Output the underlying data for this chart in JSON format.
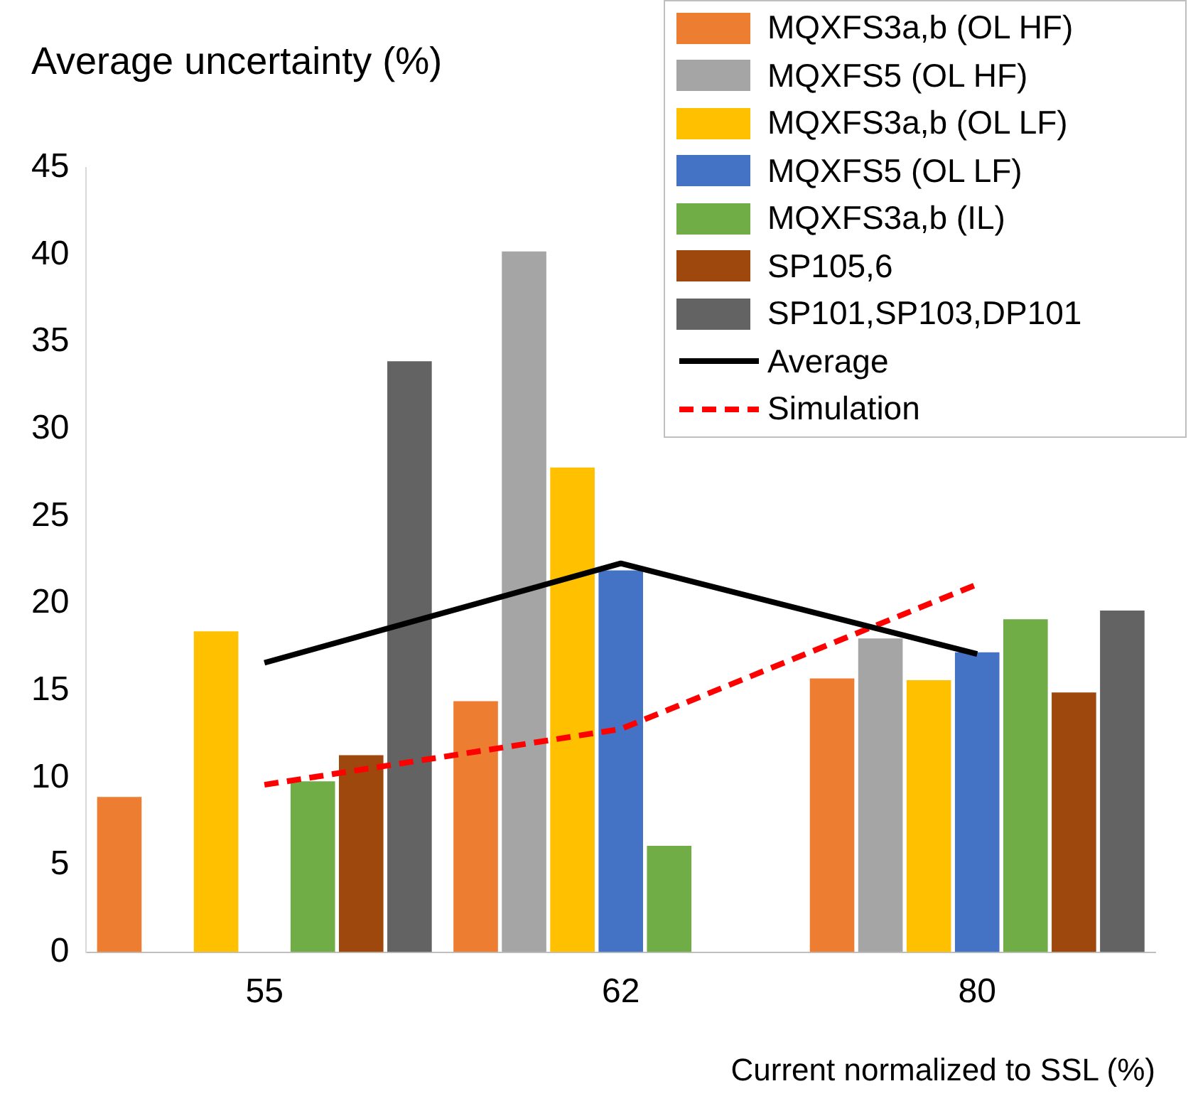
{
  "chart_data": {
    "type": "bar",
    "ylabel": "Average uncertainty (%)",
    "xlabel": "Current normalized to SSL (%)",
    "categories": [
      "55",
      "62",
      "80"
    ],
    "series": [
      {
        "name": "MQXFS3a,b (OL HF)",
        "color": "#ed7d31",
        "values": [
          8.9,
          14.4,
          15.7
        ]
      },
      {
        "name": "MQXFS5 (OL HF)",
        "color": "#a5a5a5",
        "values": [
          null,
          40.2,
          18.0
        ]
      },
      {
        "name": "MQXFS3a,b (OL LF)",
        "color": "#ffc000",
        "values": [
          18.4,
          27.8,
          15.6
        ]
      },
      {
        "name": "MQXFS5 (OL LF)",
        "color": "#4472c4",
        "values": [
          null,
          21.9,
          17.2
        ]
      },
      {
        "name": "MQXFS3a,b (IL)",
        "color": "#70ad47",
        "values": [
          9.8,
          6.1,
          19.1
        ]
      },
      {
        "name": "SP105,6",
        "color": "#9e480e",
        "values": [
          11.3,
          null,
          14.9
        ]
      },
      {
        "name": "SP101,SP103,DP101",
        "color": "#636363",
        "values": [
          33.9,
          null,
          19.6
        ]
      },
      {
        "name": "Average",
        "type": "line",
        "color": "#000000",
        "line_style": "solid",
        "values": [
          16.6,
          22.3,
          17.1
        ]
      },
      {
        "name": "Simulation",
        "type": "line",
        "color": "#ff0000",
        "line_style": "dashed",
        "values": [
          9.6,
          12.8,
          21.1
        ]
      }
    ],
    "ylim": [
      0,
      45
    ],
    "yticks": [
      0,
      5,
      10,
      15,
      20,
      25,
      30,
      35,
      40,
      45
    ],
    "grid": false,
    "legend": "top right",
    "marker": "none"
  }
}
